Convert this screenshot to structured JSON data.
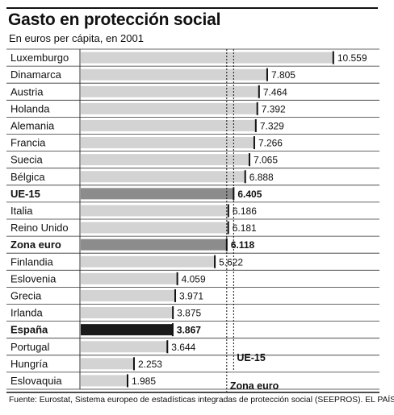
{
  "header": {
    "title": "Gasto en protección social",
    "subtitle": "En euros per cápita, en 2001"
  },
  "footer": {
    "source": "Fuente: Eurostat, Sistema europeo de estadísticas integradas de protección social (SEEPROS).    EL PAÍS"
  },
  "colors": {
    "bar": "#d3d3d3",
    "aggregate_bar": "#8c8c8c",
    "highlight_bar": "#1a1a1a",
    "row_line": "#333333"
  },
  "chart_data": {
    "type": "bar",
    "orientation": "horizontal",
    "title": "Gasto en protección social",
    "subtitle": "En euros per cápita, en 2001",
    "categories": [
      "Luxemburgo",
      "Dinamarca",
      "Austria",
      "Holanda",
      "Alemania",
      "Francia",
      "Suecia",
      "Bélgica",
      "UE-15",
      "Italia",
      "Reino Unido",
      "Zona euro",
      "Finlandia",
      "Eslovenia",
      "Grecia",
      "Irlanda",
      "España",
      "Portugal",
      "Hungría",
      "Eslovaquia"
    ],
    "values": [
      10559,
      7805,
      7464,
      7392,
      7329,
      7266,
      7065,
      6888,
      6405,
      6186,
      6181,
      6118,
      5622,
      4059,
      3971,
      3875,
      3867,
      3644,
      2253,
      1985
    ],
    "value_labels": [
      "10.559",
      "7.805",
      "7.464",
      "7.392",
      "7.329",
      "7.266",
      "7.065",
      "6.888",
      "6.405",
      "6.186",
      "6.181",
      "6.118",
      "5.622",
      "4.059",
      "3.971",
      "3.875",
      "3.867",
      "3.644",
      "2.253",
      "1.985"
    ],
    "aggregates": [
      "UE-15",
      "Zona euro"
    ],
    "highlight": "España",
    "reference_lines": [
      {
        "label": "UE-15",
        "value": 6405
      },
      {
        "label": "Zona euro",
        "value": 6118
      }
    ],
    "xlim": [
      0,
      11000
    ],
    "grid": false,
    "legend": "none"
  }
}
